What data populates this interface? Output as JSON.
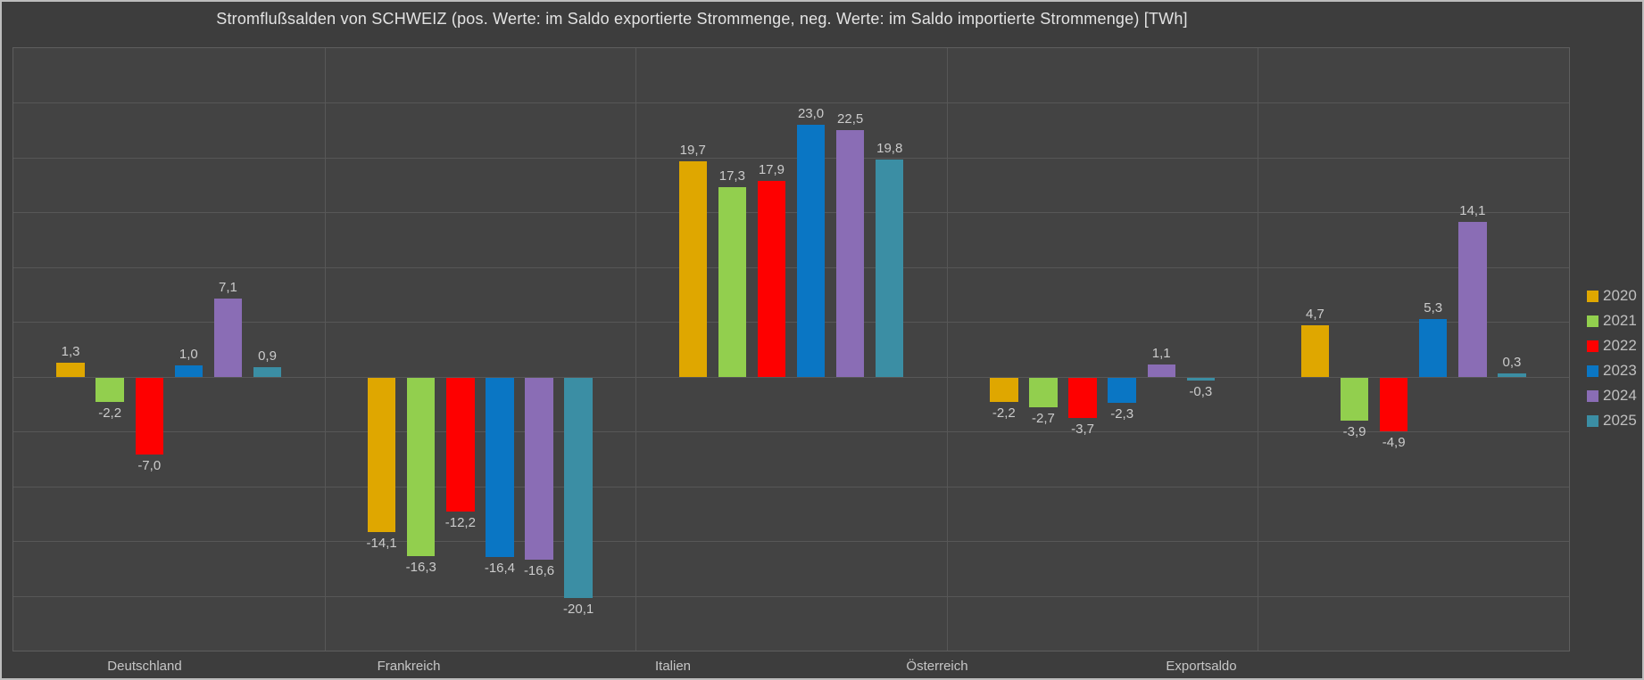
{
  "chart_data": {
    "type": "bar",
    "title": "Stromflußsalden von SCHWEIZ (pos. Werte: im Saldo exportierte Strommenge, neg. Werte: im Saldo importierte Strommenge)  [TWh]",
    "unit": "TWh",
    "categories": [
      "Deutschland",
      "Frankreich",
      "Italien",
      "Österreich",
      "Exportsaldo"
    ],
    "series": [
      {
        "name": "2020",
        "color": "#DFA700",
        "values": [
          1.3,
          -14.1,
          19.7,
          -2.2,
          4.7
        ]
      },
      {
        "name": "2021",
        "color": "#92CF4E",
        "values": [
          -2.2,
          -16.3,
          17.3,
          -2.7,
          -3.9
        ]
      },
      {
        "name": "2022",
        "color": "#FE0000",
        "values": [
          -7.0,
          -12.2,
          17.9,
          -3.7,
          -4.9
        ]
      },
      {
        "name": "2023",
        "color": "#0A76C4",
        "values": [
          1.0,
          -16.4,
          23.0,
          -2.3,
          5.3
        ]
      },
      {
        "name": "2024",
        "color": "#8A6DB5",
        "values": [
          7.1,
          -16.6,
          22.5,
          1.1,
          14.1
        ]
      },
      {
        "name": "2025",
        "color": "#3B8EA4",
        "values": [
          0.9,
          -20.1,
          19.8,
          -0.3,
          0.3
        ]
      }
    ],
    "ylim": [
      -25,
      30
    ],
    "grid_step": 5,
    "grid": true,
    "legend_position": "right",
    "decimal_separator": ",",
    "value_labels": "outside-end"
  },
  "colors": {
    "background": "#3D3D3D",
    "plot_background": "#434343",
    "gridline": "#575757",
    "frame_border": "#BDBDBD",
    "title_text": "#E3E3E3",
    "value_text": "#CBCBCB",
    "axis_text": "#C6C6C6",
    "legend_text": "#BFBFBF"
  }
}
